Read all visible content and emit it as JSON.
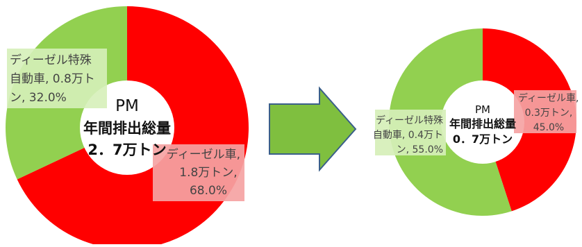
{
  "chart_data": [
    {
      "type": "pie",
      "variant": "donut",
      "center_label": {
        "line1": "PM",
        "line2": "年間排出総量",
        "line3": "2．7万トン"
      },
      "slices": [
        {
          "name": "ディーゼル車",
          "label_lines": [
            "ディーゼル車,",
            "1.8万トン,",
            "68.0%"
          ],
          "value_man_ton": 1.8,
          "percent": 68.0,
          "color": "#ff0000",
          "label_bg": "#f5a3a3"
        },
        {
          "name": "ディーゼル特殊自動車",
          "label_lines": [
            "ディーゼル特殊",
            "自動車, 0.8万ト",
            "ン, 32.0%"
          ],
          "value_man_ton": 0.8,
          "percent": 32.0,
          "color": "#92d050",
          "label_bg": "#d6efb9"
        }
      ]
    },
    {
      "type": "pie",
      "variant": "donut",
      "center_label": {
        "line1": "PM",
        "line2": "年間排出総量",
        "line3": "0．7万トン"
      },
      "slices": [
        {
          "name": "ディーゼル車",
          "label_lines": [
            "ディーゼル車,",
            "0.3万トン,",
            "45.0%"
          ],
          "value_man_ton": 0.3,
          "percent": 45.0,
          "color": "#ff0000",
          "label_bg": "#f5a3a3"
        },
        {
          "name": "ディーゼル特殊自動車",
          "label_lines": [
            "ディーゼル特殊",
            "自動車, 0.4万ト",
            "ン, 55.0%"
          ],
          "value_man_ton": 0.4,
          "percent": 55.0,
          "color": "#92d050",
          "label_bg": "#d6efb9"
        }
      ]
    }
  ],
  "arrow": {
    "fill": "#7fbf3f",
    "stroke": "#3a5f8a"
  }
}
